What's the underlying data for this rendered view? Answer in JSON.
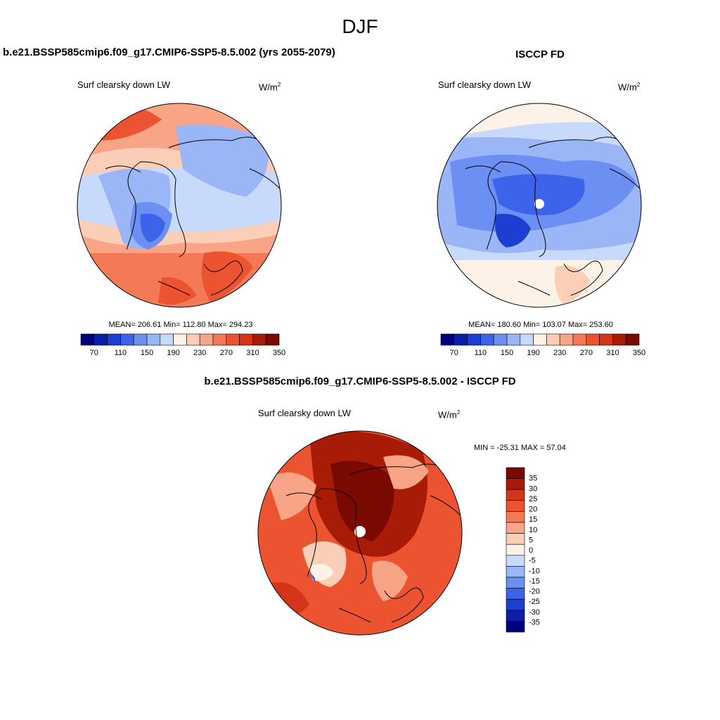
{
  "season": "DJF",
  "model_panel": {
    "header": "b.e21.BSSP585cmip6.f09_g17.CMIP6-SSP5-8.5.002 (yrs 2055-2079)",
    "variable": "Surf clearsky down LW",
    "units_base": "W/m",
    "units_exp": "2",
    "stats": "MEAN= 206.61  Min= 112.80  Max= 294.23"
  },
  "obs_panel": {
    "header": "ISCCP FD",
    "variable": "Surf clearsky down LW",
    "units_base": "W/m",
    "units_exp": "2",
    "stats": "MEAN= 180.60  Min= 103.07  Max= 253.60"
  },
  "diff_panel": {
    "header": "b.e21.BSSP585cmip6.f09_g17.CMIP6-SSP5-8.5.002 - ISCCP FD",
    "variable": "Surf clearsky down LW",
    "units_base": "W/m",
    "units_exp": "2",
    "stats": "MIN = -25.31 MAX =  57.04"
  },
  "abs_colorbar": {
    "colors": [
      "#00007f",
      "#0a1ea8",
      "#1c3fd2",
      "#3d63ea",
      "#6b8ff2",
      "#9ab6f7",
      "#c8dafb",
      "#fdf2e7",
      "#fbcfb7",
      "#f7a586",
      "#f47a57",
      "#ec5330",
      "#d43518",
      "#a81b07",
      "#7a0a00"
    ],
    "labels": [
      "70",
      "110",
      "150",
      "190",
      "230",
      "270",
      "310",
      "350"
    ]
  },
  "diff_colorbar": {
    "colors": [
      "#00007f",
      "#0a1ea8",
      "#1c3fd2",
      "#3d63ea",
      "#6b8ff2",
      "#9ab6f7",
      "#c8dafb",
      "#fdf2e7",
      "#fbcfb7",
      "#f7a586",
      "#f47a57",
      "#ec5330",
      "#d43518",
      "#a81b07",
      "#7a0a00"
    ],
    "labels": [
      "35",
      "30",
      "25",
      "20",
      "15",
      "10",
      "5",
      "0",
      "-5",
      "-10",
      "-15",
      "-20",
      "-25",
      "-30",
      "-35"
    ]
  }
}
